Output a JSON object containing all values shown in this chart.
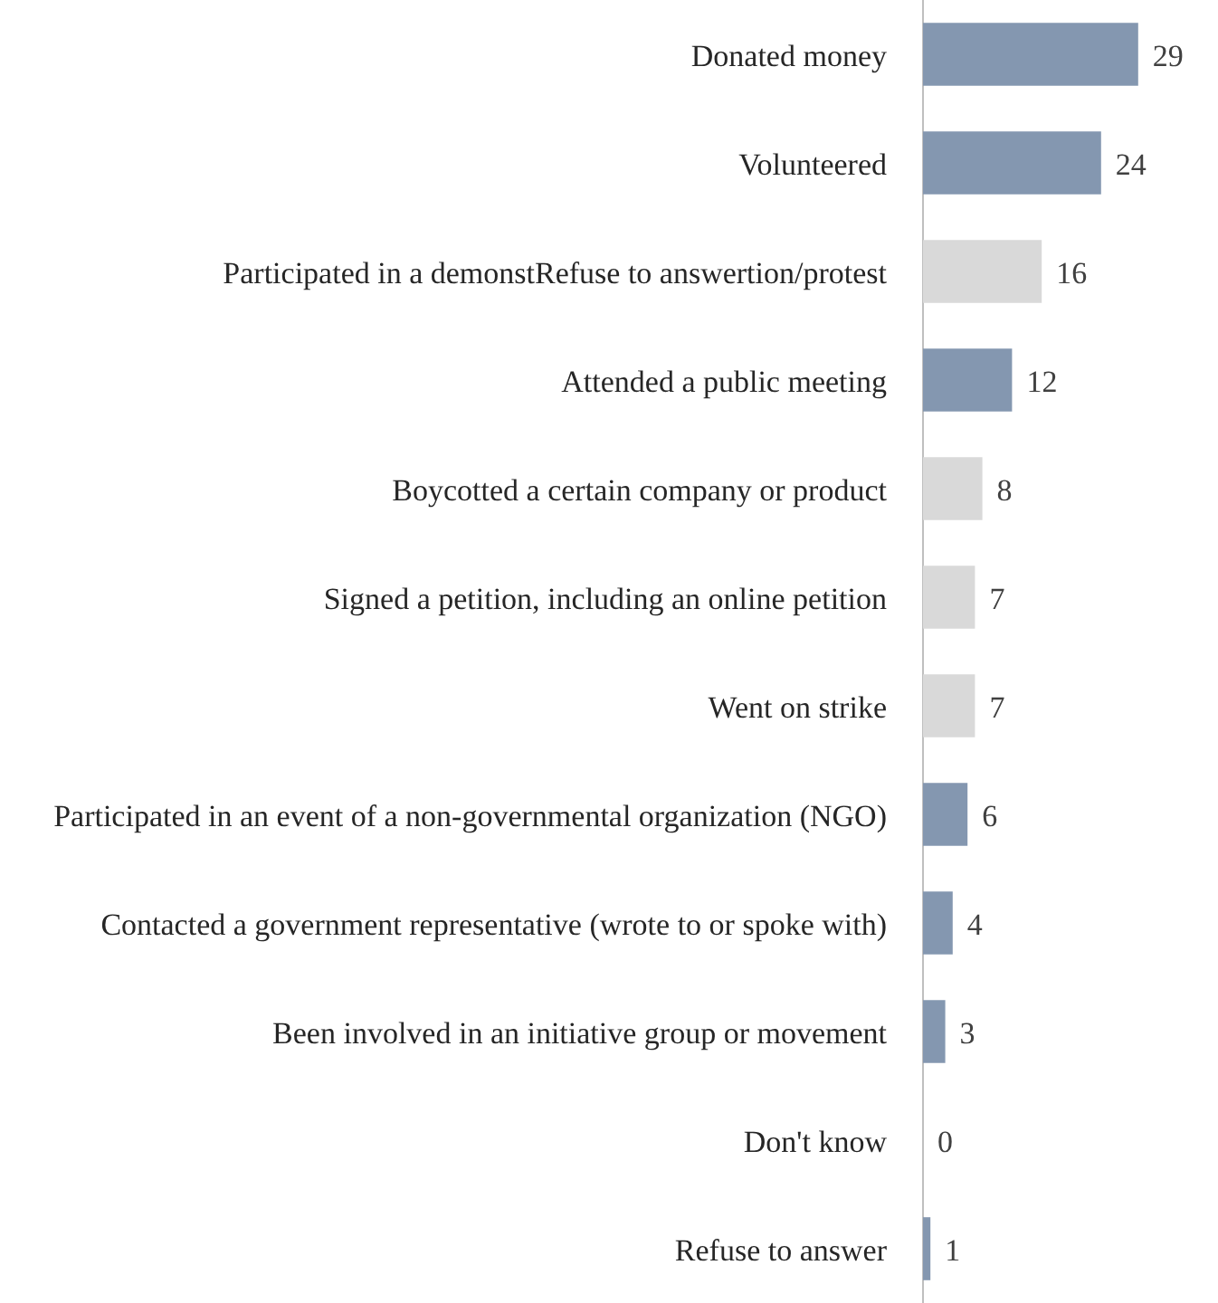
{
  "chart_data": {
    "type": "bar",
    "orientation": "horizontal",
    "data_labels": true,
    "categories": [
      "Donated money",
      "Volunteered",
      "Participated in a demonstRefuse to answertion/protest",
      "Attended a public meeting",
      "Boycotted a certain company or product",
      "Signed a petition, including an online petition",
      "Went on strike",
      "Participated in an event of a non-governmental organization (NGO)",
      "Contacted a government representative (wrote to or spoke with)",
      "Been involved in an initiative group or movement",
      "Don't know",
      "Refuse to answer"
    ],
    "values": [
      29,
      24,
      16,
      12,
      8,
      7,
      7,
      6,
      4,
      3,
      0,
      1
    ],
    "colors": [
      "#8497b0",
      "#8497b0",
      "#d9d9d9",
      "#8497b0",
      "#d9d9d9",
      "#d9d9d9",
      "#d9d9d9",
      "#8497b0",
      "#8497b0",
      "#8497b0",
      "#8497b0",
      "#8497b0"
    ]
  }
}
